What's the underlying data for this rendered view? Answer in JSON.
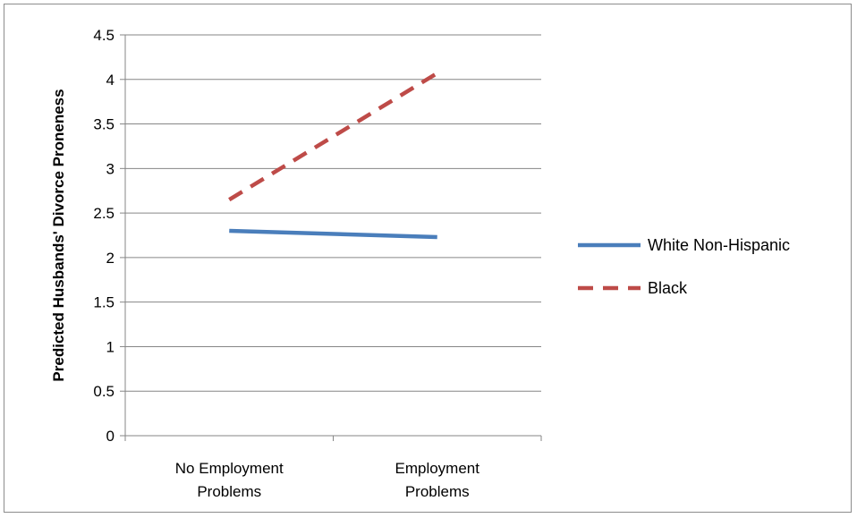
{
  "chart_data": {
    "type": "line",
    "categories": [
      "No Employment Problems",
      "Employment Problems"
    ],
    "category_lines": [
      [
        "No Employment",
        "Problems"
      ],
      [
        "Employment",
        "Problems"
      ]
    ],
    "series": [
      {
        "name": "White Non-Hispanic",
        "values": [
          2.3,
          2.23
        ],
        "color": "#4a7ebb",
        "dash": "solid"
      },
      {
        "name": "Black",
        "values": [
          2.65,
          4.07
        ],
        "color": "#be4b48",
        "dash": "dashed"
      }
    ],
    "title": "",
    "xlabel": "",
    "ylabel": "Predicted Husbands' Divorce Proneness",
    "ylim": [
      0,
      4.5
    ],
    "yticks": [
      "0",
      "0.5",
      "1",
      "1.5",
      "2",
      "2.5",
      "3",
      "3.5",
      "4",
      "4.5"
    ],
    "grid": true,
    "legend_position": "right"
  }
}
